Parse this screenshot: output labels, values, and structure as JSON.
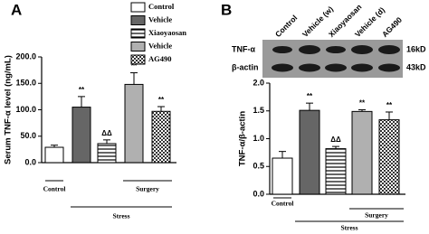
{
  "chart_data": [
    {
      "type": "bar",
      "panel_label": "A",
      "ylabel": "Serum TNF-α level (ng/mL)",
      "categories": [
        "Control",
        "Vehicle",
        "Xiaoyaosan",
        "Vehicle",
        "AG490"
      ],
      "values": [
        29,
        105,
        36,
        148,
        97
      ],
      "errors": [
        4,
        20,
        7,
        22,
        9
      ],
      "colors": [
        "#ffffff",
        "#666666",
        "#ffffff",
        "#b0b0b0",
        "#ffffff"
      ],
      "patterns": [
        null,
        null,
        "horizontal-stripes",
        null,
        "checkered"
      ],
      "annotations": [
        null,
        "**",
        "ΔΔ",
        "**",
        "**"
      ],
      "ylim": [
        0,
        200
      ],
      "yticks": [
        {
          "value": 0,
          "label": "0.0"
        },
        {
          "value": 50,
          "label": "50.0"
        },
        {
          "value": 100,
          "label": "100.0"
        },
        {
          "value": 150,
          "label": "150.0"
        },
        {
          "value": 200,
          "label": "200.0"
        }
      ],
      "groups": [
        "Control",
        "Stress",
        "Surgery"
      ],
      "legend": "upper right"
    },
    {
      "type": "bar",
      "panel_label": "B",
      "ylabel": "TNF-α/β-actin",
      "categories": [
        "Control",
        "Vehicle (w)",
        "Xiaoyaosan",
        "Vehicle (d)",
        "AG490"
      ],
      "values": [
        0.65,
        1.51,
        0.82,
        1.49,
        1.34
      ],
      "errors": [
        0.12,
        0.13,
        0.04,
        0.03,
        0.14
      ],
      "colors": [
        "#ffffff",
        "#666666",
        "#ffffff",
        "#b0b0b0",
        "#ffffff"
      ],
      "patterns": [
        null,
        null,
        "horizontal-stripes",
        null,
        "checkered"
      ],
      "annotations": [
        null,
        "**",
        "ΔΔ",
        "**",
        "**"
      ],
      "ylim": [
        0,
        2
      ],
      "yticks": [
        {
          "value": 0,
          "label": "0.0"
        },
        {
          "value": 0.5,
          "label": "0.5"
        },
        {
          "value": 1,
          "label": "1.0"
        },
        {
          "value": 1.5,
          "label": "1.5"
        },
        {
          "value": 2,
          "label": "2.0"
        }
      ],
      "groups": [
        "Control",
        "Stress",
        "Surgery"
      ],
      "blot": {
        "rows": [
          "TNF-α",
          "β-actin"
        ],
        "sizes": [
          "16kD",
          "43kD"
        ]
      }
    }
  ]
}
